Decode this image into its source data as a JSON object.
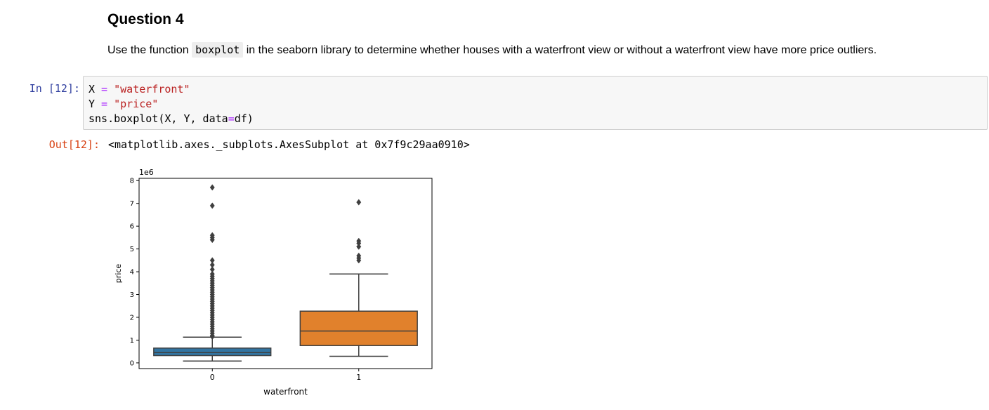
{
  "markdown": {
    "heading": "Question 4",
    "text_before": "Use the function ",
    "code": "boxplot",
    "text_after": " in the seaborn library to determine whether houses with a waterfront view or without a waterfront view have more price outliers."
  },
  "code_cell": {
    "prompt": "In [12]:",
    "lines": {
      "line1": {
        "var": "X",
        "op": " = ",
        "str": "\"waterfront\""
      },
      "line2": {
        "var": "Y",
        "op": " = ",
        "str": "\"price\""
      },
      "line3": {
        "pre": "sns.boxplot(X, Y, data",
        "op": "=",
        "post": "df)"
      }
    }
  },
  "output": {
    "prompt": "Out[12]:",
    "text": "<matplotlib.axes._subplots.AxesSubplot at 0x7f9c29aa0910>"
  },
  "chart_data": {
    "type": "box",
    "xlabel": "waterfront",
    "ylabel": "price",
    "y_offset_label": "1e6",
    "ylim": [
      -0.25,
      8.1
    ],
    "yticks": [
      0,
      1,
      2,
      3,
      4,
      5,
      6,
      7,
      8
    ],
    "categories": [
      "0",
      "1"
    ],
    "colors": [
      "#3274a1",
      "#e1812c"
    ],
    "boxes": [
      {
        "category": "0",
        "whisker_low": 0.08,
        "q1": 0.32,
        "median": 0.45,
        "q3": 0.65,
        "whisker_high": 1.13,
        "outliers": [
          7.7,
          6.9,
          5.6,
          5.5,
          5.4,
          4.5,
          4.3,
          4.1,
          3.9,
          3.8,
          3.7,
          3.6,
          3.5,
          3.4,
          3.3,
          3.2,
          3.1,
          3.0,
          2.9,
          2.8,
          2.7,
          2.6,
          2.5,
          2.4,
          2.3,
          2.2,
          2.1,
          2.0,
          1.9,
          1.8,
          1.7,
          1.6,
          1.5,
          1.4,
          1.3,
          1.2,
          1.15
        ]
      },
      {
        "category": "1",
        "whisker_low": 0.29,
        "q1": 0.76,
        "median": 1.4,
        "q3": 2.27,
        "whisker_high": 3.9,
        "outliers": [
          7.05,
          5.35,
          5.25,
          5.1,
          4.7,
          4.6,
          4.5
        ]
      }
    ]
  }
}
